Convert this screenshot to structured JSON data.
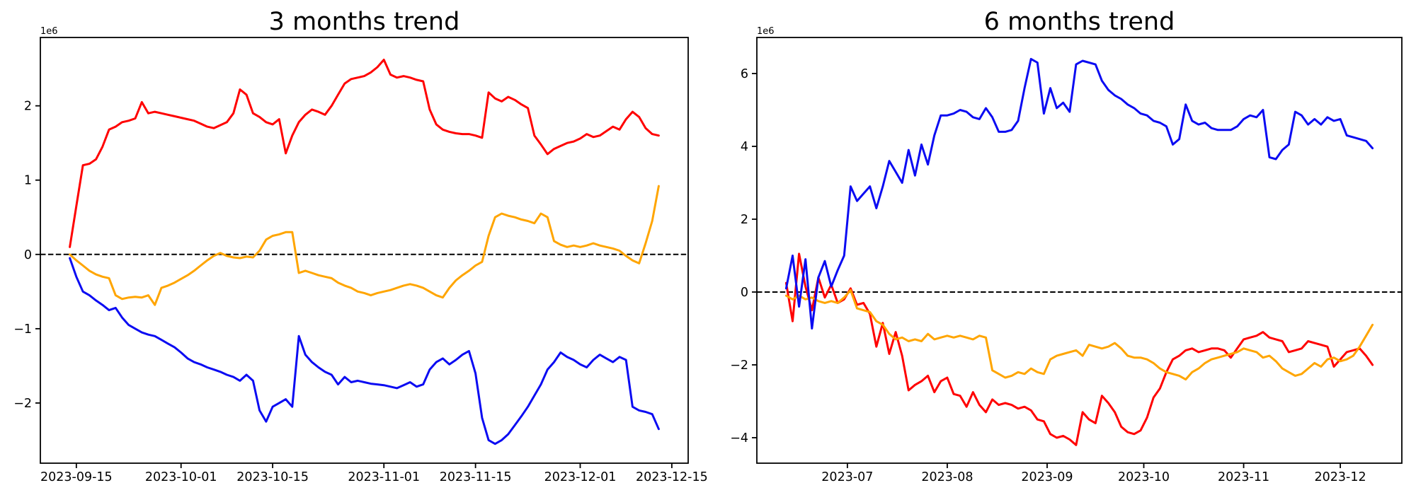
{
  "figure": {
    "background": "#ffffff",
    "line_colors": {
      "red": "#ff0000",
      "orange": "#ffa500",
      "blue": "#0b0bf2"
    },
    "zero_line_color": "#000000"
  },
  "chart_data": [
    {
      "type": "line",
      "title": "3 months trend",
      "y_offset_label": "1e6",
      "x_start": "2023-09-14",
      "x_step_days": 1,
      "x_margin": 0.05,
      "ylim": [
        -2.81,
        2.92
      ],
      "grid": false,
      "legend": "none",
      "zero_line": {
        "value": 0,
        "style": "dashed",
        "color": "#000000"
      },
      "x_ticks": [
        {
          "date": "2023-09-15",
          "label": "2023-09-15"
        },
        {
          "date": "2023-10-01",
          "label": "2023-10-01"
        },
        {
          "date": "2023-10-15",
          "label": "2023-10-15"
        },
        {
          "date": "2023-11-01",
          "label": "2023-11-01"
        },
        {
          "date": "2023-11-15",
          "label": "2023-11-15"
        },
        {
          "date": "2023-12-01",
          "label": "2023-12-01"
        },
        {
          "date": "2023-12-15",
          "label": "2023-12-15"
        }
      ],
      "y_ticks": [
        {
          "value": -2,
          "label": "−2"
        },
        {
          "value": -1,
          "label": "−1"
        },
        {
          "value": 0,
          "label": "0"
        },
        {
          "value": 1,
          "label": "1"
        },
        {
          "value": 2,
          "label": "2"
        }
      ],
      "series": [
        {
          "name": "red",
          "color": "#ff0000",
          "values": [
            0.1,
            0.65,
            1.2,
            1.22,
            1.28,
            1.45,
            1.68,
            1.72,
            1.78,
            1.8,
            1.83,
            2.05,
            1.9,
            1.92,
            1.9,
            1.88,
            1.86,
            1.84,
            1.82,
            1.8,
            1.76,
            1.72,
            1.7,
            1.74,
            1.78,
            1.9,
            2.22,
            2.15,
            1.9,
            1.85,
            1.78,
            1.75,
            1.82,
            1.36,
            1.6,
            1.78,
            1.88,
            1.95,
            1.92,
            1.88,
            2.0,
            2.15,
            2.3,
            2.36,
            2.38,
            2.4,
            2.45,
            2.52,
            2.62,
            2.42,
            2.38,
            2.4,
            2.38,
            2.35,
            2.33,
            1.95,
            1.75,
            1.68,
            1.65,
            1.63,
            1.62,
            1.62,
            1.6,
            1.57,
            2.18,
            2.1,
            2.06,
            2.12,
            2.08,
            2.02,
            1.97,
            1.6,
            1.48,
            1.35,
            1.42,
            1.46,
            1.5,
            1.52,
            1.56,
            1.62,
            1.58,
            1.6,
            1.66,
            1.72,
            1.68,
            1.82,
            1.92,
            1.85,
            1.7,
            1.62,
            1.6
          ]
        },
        {
          "name": "orange",
          "color": "#ffa500",
          "values": [
            0.0,
            -0.08,
            -0.15,
            -0.22,
            -0.27,
            -0.3,
            -0.32,
            -0.55,
            -0.6,
            -0.58,
            -0.57,
            -0.58,
            -0.55,
            -0.68,
            -0.45,
            -0.42,
            -0.38,
            -0.33,
            -0.28,
            -0.22,
            -0.15,
            -0.08,
            -0.02,
            0.02,
            -0.02,
            -0.04,
            -0.05,
            -0.03,
            -0.04,
            0.05,
            0.2,
            0.25,
            0.27,
            0.3,
            0.3,
            -0.25,
            -0.22,
            -0.25,
            -0.28,
            -0.3,
            -0.32,
            -0.38,
            -0.42,
            -0.45,
            -0.5,
            -0.52,
            -0.55,
            -0.52,
            -0.5,
            -0.48,
            -0.45,
            -0.42,
            -0.4,
            -0.42,
            -0.45,
            -0.5,
            -0.55,
            -0.58,
            -0.45,
            -0.35,
            -0.28,
            -0.22,
            -0.15,
            -0.1,
            0.25,
            0.5,
            0.55,
            0.52,
            0.5,
            0.47,
            0.45,
            0.42,
            0.55,
            0.5,
            0.18,
            0.13,
            0.1,
            0.12,
            0.1,
            0.12,
            0.15,
            0.12,
            0.1,
            0.08,
            0.05,
            -0.02,
            -0.08,
            -0.12,
            0.15,
            0.45,
            0.92
          ]
        },
        {
          "name": "blue",
          "color": "#0b0bf2",
          "values": [
            -0.05,
            -0.3,
            -0.5,
            -0.55,
            -0.62,
            -0.68,
            -0.75,
            -0.72,
            -0.85,
            -0.95,
            -1.0,
            -1.05,
            -1.08,
            -1.1,
            -1.15,
            -1.2,
            -1.25,
            -1.32,
            -1.4,
            -1.45,
            -1.48,
            -1.52,
            -1.55,
            -1.58,
            -1.62,
            -1.65,
            -1.7,
            -1.62,
            -1.7,
            -2.1,
            -2.25,
            -2.05,
            -2.0,
            -1.95,
            -2.05,
            -1.1,
            -1.35,
            -1.45,
            -1.52,
            -1.58,
            -1.62,
            -1.75,
            -1.65,
            -1.72,
            -1.7,
            -1.72,
            -1.74,
            -1.75,
            -1.76,
            -1.78,
            -1.8,
            -1.76,
            -1.72,
            -1.78,
            -1.75,
            -1.55,
            -1.45,
            -1.4,
            -1.48,
            -1.42,
            -1.35,
            -1.3,
            -1.6,
            -2.2,
            -2.5,
            -2.55,
            -2.5,
            -2.42,
            -2.3,
            -2.18,
            -2.05,
            -1.9,
            -1.75,
            -1.55,
            -1.45,
            -1.32,
            -1.38,
            -1.42,
            -1.48,
            -1.52,
            -1.42,
            -1.35,
            -1.4,
            -1.45,
            -1.38,
            -1.42,
            -2.05,
            -2.1,
            -2.12,
            -2.15,
            -2.35
          ]
        }
      ]
    },
    {
      "type": "line",
      "title": "6 months trend",
      "y_offset_label": "1e6",
      "x_start": "2023-06-12",
      "x_step_days": 2,
      "x_margin": 0.05,
      "ylim": [
        -4.7,
        6.99
      ],
      "grid": false,
      "legend": "none",
      "zero_line": {
        "value": 0,
        "style": "dashed",
        "color": "#000000"
      },
      "x_ticks": [
        {
          "date": "2023-07-01",
          "label": "2023-07"
        },
        {
          "date": "2023-08-01",
          "label": "2023-08"
        },
        {
          "date": "2023-09-01",
          "label": "2023-09"
        },
        {
          "date": "2023-10-01",
          "label": "2023-10"
        },
        {
          "date": "2023-11-01",
          "label": "2023-11"
        },
        {
          "date": "2023-12-01",
          "label": "2023-12"
        }
      ],
      "y_ticks": [
        {
          "value": -4,
          "label": "−4"
        },
        {
          "value": -2,
          "label": "−2"
        },
        {
          "value": 0,
          "label": "0"
        },
        {
          "value": 2,
          "label": "2"
        },
        {
          "value": 4,
          "label": "4"
        },
        {
          "value": 6,
          "label": "6"
        }
      ],
      "series": [
        {
          "name": "red",
          "color": "#ff0000",
          "values": [
            0.25,
            -0.8,
            1.05,
            0.15,
            -0.5,
            0.4,
            -0.15,
            0.2,
            -0.3,
            -0.2,
            0.1,
            -0.35,
            -0.3,
            -0.6,
            -1.5,
            -0.85,
            -1.7,
            -1.1,
            -1.75,
            -2.7,
            -2.55,
            -2.45,
            -2.3,
            -2.75,
            -2.45,
            -2.35,
            -2.8,
            -2.85,
            -3.15,
            -2.75,
            -3.1,
            -3.3,
            -2.95,
            -3.1,
            -3.05,
            -3.1,
            -3.2,
            -3.15,
            -3.25,
            -3.5,
            -3.55,
            -3.9,
            -4.0,
            -3.95,
            -4.05,
            -4.2,
            -3.3,
            -3.5,
            -3.6,
            -2.85,
            -3.05,
            -3.3,
            -3.7,
            -3.85,
            -3.9,
            -3.8,
            -3.45,
            -2.9,
            -2.65,
            -2.2,
            -1.85,
            -1.75,
            -1.6,
            -1.55,
            -1.65,
            -1.6,
            -1.55,
            -1.55,
            -1.6,
            -1.8,
            -1.55,
            -1.3,
            -1.25,
            -1.2,
            -1.1,
            -1.25,
            -1.3,
            -1.35,
            -1.65,
            -1.6,
            -1.55,
            -1.35,
            -1.4,
            -1.45,
            -1.5,
            -2.05,
            -1.85,
            -1.65,
            -1.6,
            -1.55,
            -1.75,
            -2.0
          ]
        },
        {
          "name": "orange",
          "color": "#ffa500",
          "values": [
            -0.1,
            -0.2,
            -0.1,
            -0.2,
            -0.15,
            -0.25,
            -0.3,
            -0.25,
            -0.3,
            -0.15,
            0.05,
            -0.45,
            -0.5,
            -0.55,
            -0.8,
            -0.9,
            -1.15,
            -1.3,
            -1.25,
            -1.35,
            -1.3,
            -1.35,
            -1.15,
            -1.3,
            -1.25,
            -1.2,
            -1.25,
            -1.2,
            -1.25,
            -1.3,
            -1.2,
            -1.25,
            -2.15,
            -2.25,
            -2.35,
            -2.3,
            -2.2,
            -2.25,
            -2.1,
            -2.2,
            -2.25,
            -1.85,
            -1.75,
            -1.7,
            -1.65,
            -1.6,
            -1.75,
            -1.45,
            -1.5,
            -1.55,
            -1.5,
            -1.4,
            -1.55,
            -1.75,
            -1.8,
            -1.8,
            -1.85,
            -1.95,
            -2.1,
            -2.2,
            -2.25,
            -2.3,
            -2.4,
            -2.2,
            -2.1,
            -1.95,
            -1.85,
            -1.8,
            -1.75,
            -1.7,
            -1.65,
            -1.55,
            -1.6,
            -1.65,
            -1.8,
            -1.75,
            -1.9,
            -2.1,
            -2.2,
            -2.3,
            -2.25,
            -2.1,
            -1.95,
            -2.05,
            -1.85,
            -1.8,
            -1.9,
            -1.85,
            -1.75,
            -1.5,
            -1.2,
            -0.9
          ]
        },
        {
          "name": "blue",
          "color": "#0b0bf2",
          "values": [
            0.1,
            1.0,
            -0.4,
            0.9,
            -1.0,
            0.4,
            0.85,
            0.15,
            0.6,
            1.0,
            2.9,
            2.5,
            2.7,
            2.9,
            2.3,
            2.9,
            3.6,
            3.3,
            3.0,
            3.9,
            3.2,
            4.05,
            3.5,
            4.3,
            4.85,
            4.85,
            4.9,
            5.0,
            4.95,
            4.8,
            4.75,
            5.05,
            4.8,
            4.4,
            4.4,
            4.45,
            4.7,
            5.6,
            6.4,
            6.3,
            4.9,
            5.6,
            5.05,
            5.2,
            4.95,
            6.25,
            6.35,
            6.3,
            6.25,
            5.8,
            5.55,
            5.4,
            5.3,
            5.15,
            5.05,
            4.9,
            4.85,
            4.7,
            4.65,
            4.55,
            4.05,
            4.2,
            5.15,
            4.7,
            4.6,
            4.65,
            4.5,
            4.45,
            4.45,
            4.45,
            4.55,
            4.75,
            4.85,
            4.8,
            5.0,
            3.7,
            3.65,
            3.9,
            4.05,
            4.95,
            4.85,
            4.6,
            4.75,
            4.6,
            4.8,
            4.7,
            4.75,
            4.3,
            4.25,
            4.2,
            4.15,
            3.95
          ]
        }
      ]
    }
  ]
}
